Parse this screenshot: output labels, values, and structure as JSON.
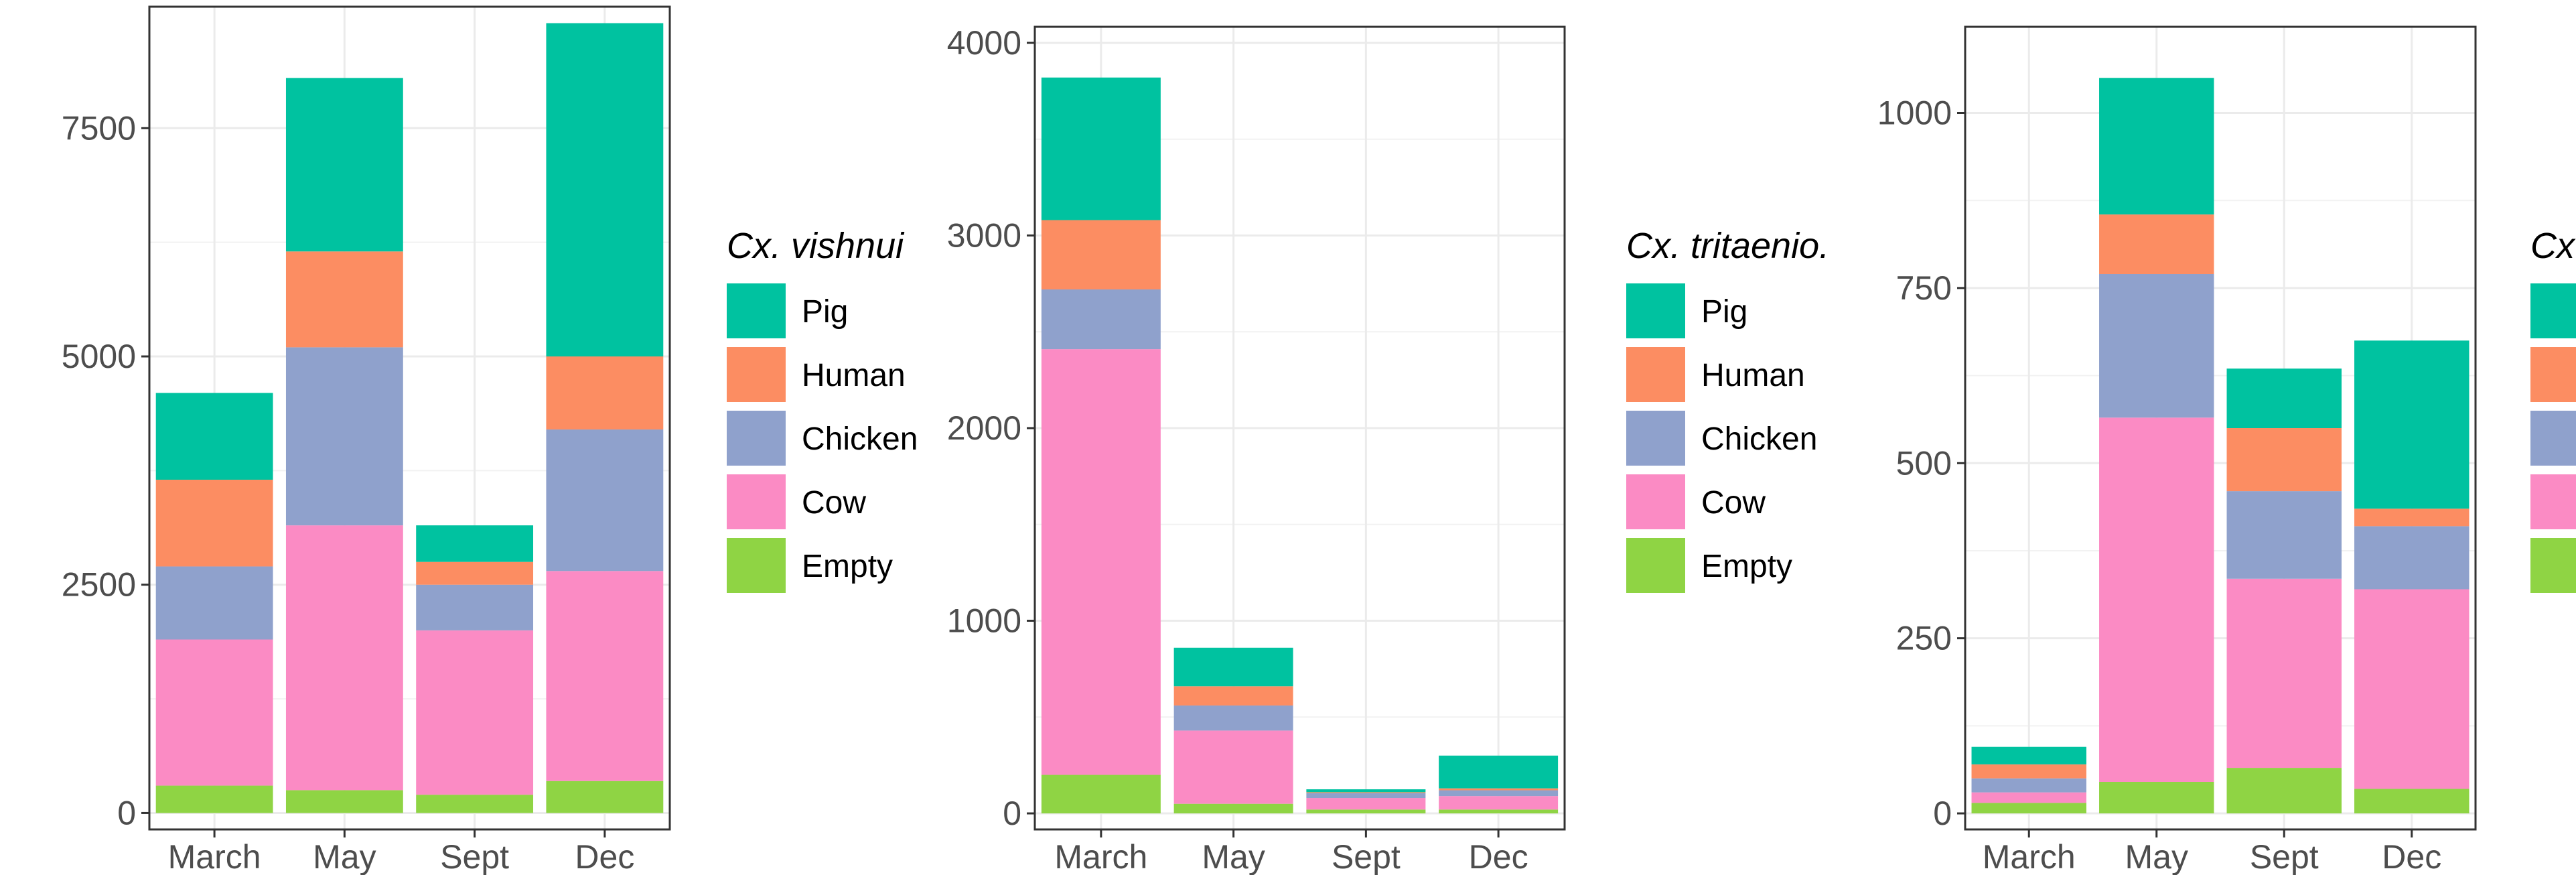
{
  "chart_data": [
    {
      "type": "bar",
      "stacked": true,
      "title": "",
      "xlabel": "",
      "ylabel": "",
      "categories": [
        "March",
        "May",
        "Sept",
        "Dec"
      ],
      "ylim": [
        0,
        8650
      ],
      "yticks": [
        0,
        2500,
        5000,
        7500
      ],
      "grid": true,
      "legend_title": "Cx. vishnui",
      "legend_position": "right",
      "series": [
        {
          "name": "Empty",
          "color": "#8fd444",
          "values": [
            300,
            250,
            200,
            350
          ]
        },
        {
          "name": "Cow",
          "color": "#fb8bc4",
          "values": [
            1600,
            2900,
            1800,
            2300
          ]
        },
        {
          "name": "Chicken",
          "color": "#8fa1cc",
          "values": [
            800,
            1950,
            500,
            1550
          ]
        },
        {
          "name": "Human",
          "color": "#fc8d62",
          "values": [
            950,
            1050,
            250,
            800
          ]
        },
        {
          "name": "Pig",
          "color": "#00c2a0",
          "values": [
            950,
            1900,
            400,
            3650
          ]
        }
      ]
    },
    {
      "type": "bar",
      "stacked": true,
      "title": "",
      "xlabel": "",
      "ylabel": "",
      "categories": [
        "March",
        "May",
        "Sept",
        "Dec"
      ],
      "ylim": [
        0,
        4000
      ],
      "yticks": [
        0,
        1000,
        2000,
        3000,
        4000
      ],
      "grid": true,
      "legend_title": "Cx. tritaenio.",
      "legend_position": "right",
      "series": [
        {
          "name": "Empty",
          "color": "#8fd444",
          "values": [
            200,
            50,
            20,
            20
          ]
        },
        {
          "name": "Cow",
          "color": "#fb8bc4",
          "values": [
            2210,
            380,
            60,
            70
          ]
        },
        {
          "name": "Chicken",
          "color": "#8fa1cc",
          "values": [
            310,
            130,
            25,
            30
          ]
        },
        {
          "name": "Human",
          "color": "#fc8d62",
          "values": [
            360,
            100,
            5,
            10
          ]
        },
        {
          "name": "Pig",
          "color": "#00c2a0",
          "values": [
            740,
            200,
            15,
            170
          ]
        }
      ]
    },
    {
      "type": "bar",
      "stacked": true,
      "title": "",
      "xlabel": "",
      "ylabel": "",
      "categories": [
        "March",
        "May",
        "Sept",
        "Dec"
      ],
      "ylim": [
        0,
        1100
      ],
      "yticks": [
        0,
        250,
        500,
        750,
        1000
      ],
      "grid": true,
      "legend_title": "Cx. gelidus",
      "legend_position": "right",
      "series": [
        {
          "name": "Empty",
          "color": "#8fd444",
          "values": [
            15,
            45,
            65,
            35
          ]
        },
        {
          "name": "Cow",
          "color": "#fb8bc4",
          "values": [
            15,
            520,
            270,
            285
          ]
        },
        {
          "name": "Chicken",
          "color": "#8fa1cc",
          "values": [
            20,
            205,
            125,
            90
          ]
        },
        {
          "name": "Human",
          "color": "#fc8d62",
          "values": [
            20,
            85,
            90,
            25
          ]
        },
        {
          "name": "Pig",
          "color": "#00c2a0",
          "values": [
            25,
            195,
            85,
            240
          ]
        }
      ]
    }
  ]
}
